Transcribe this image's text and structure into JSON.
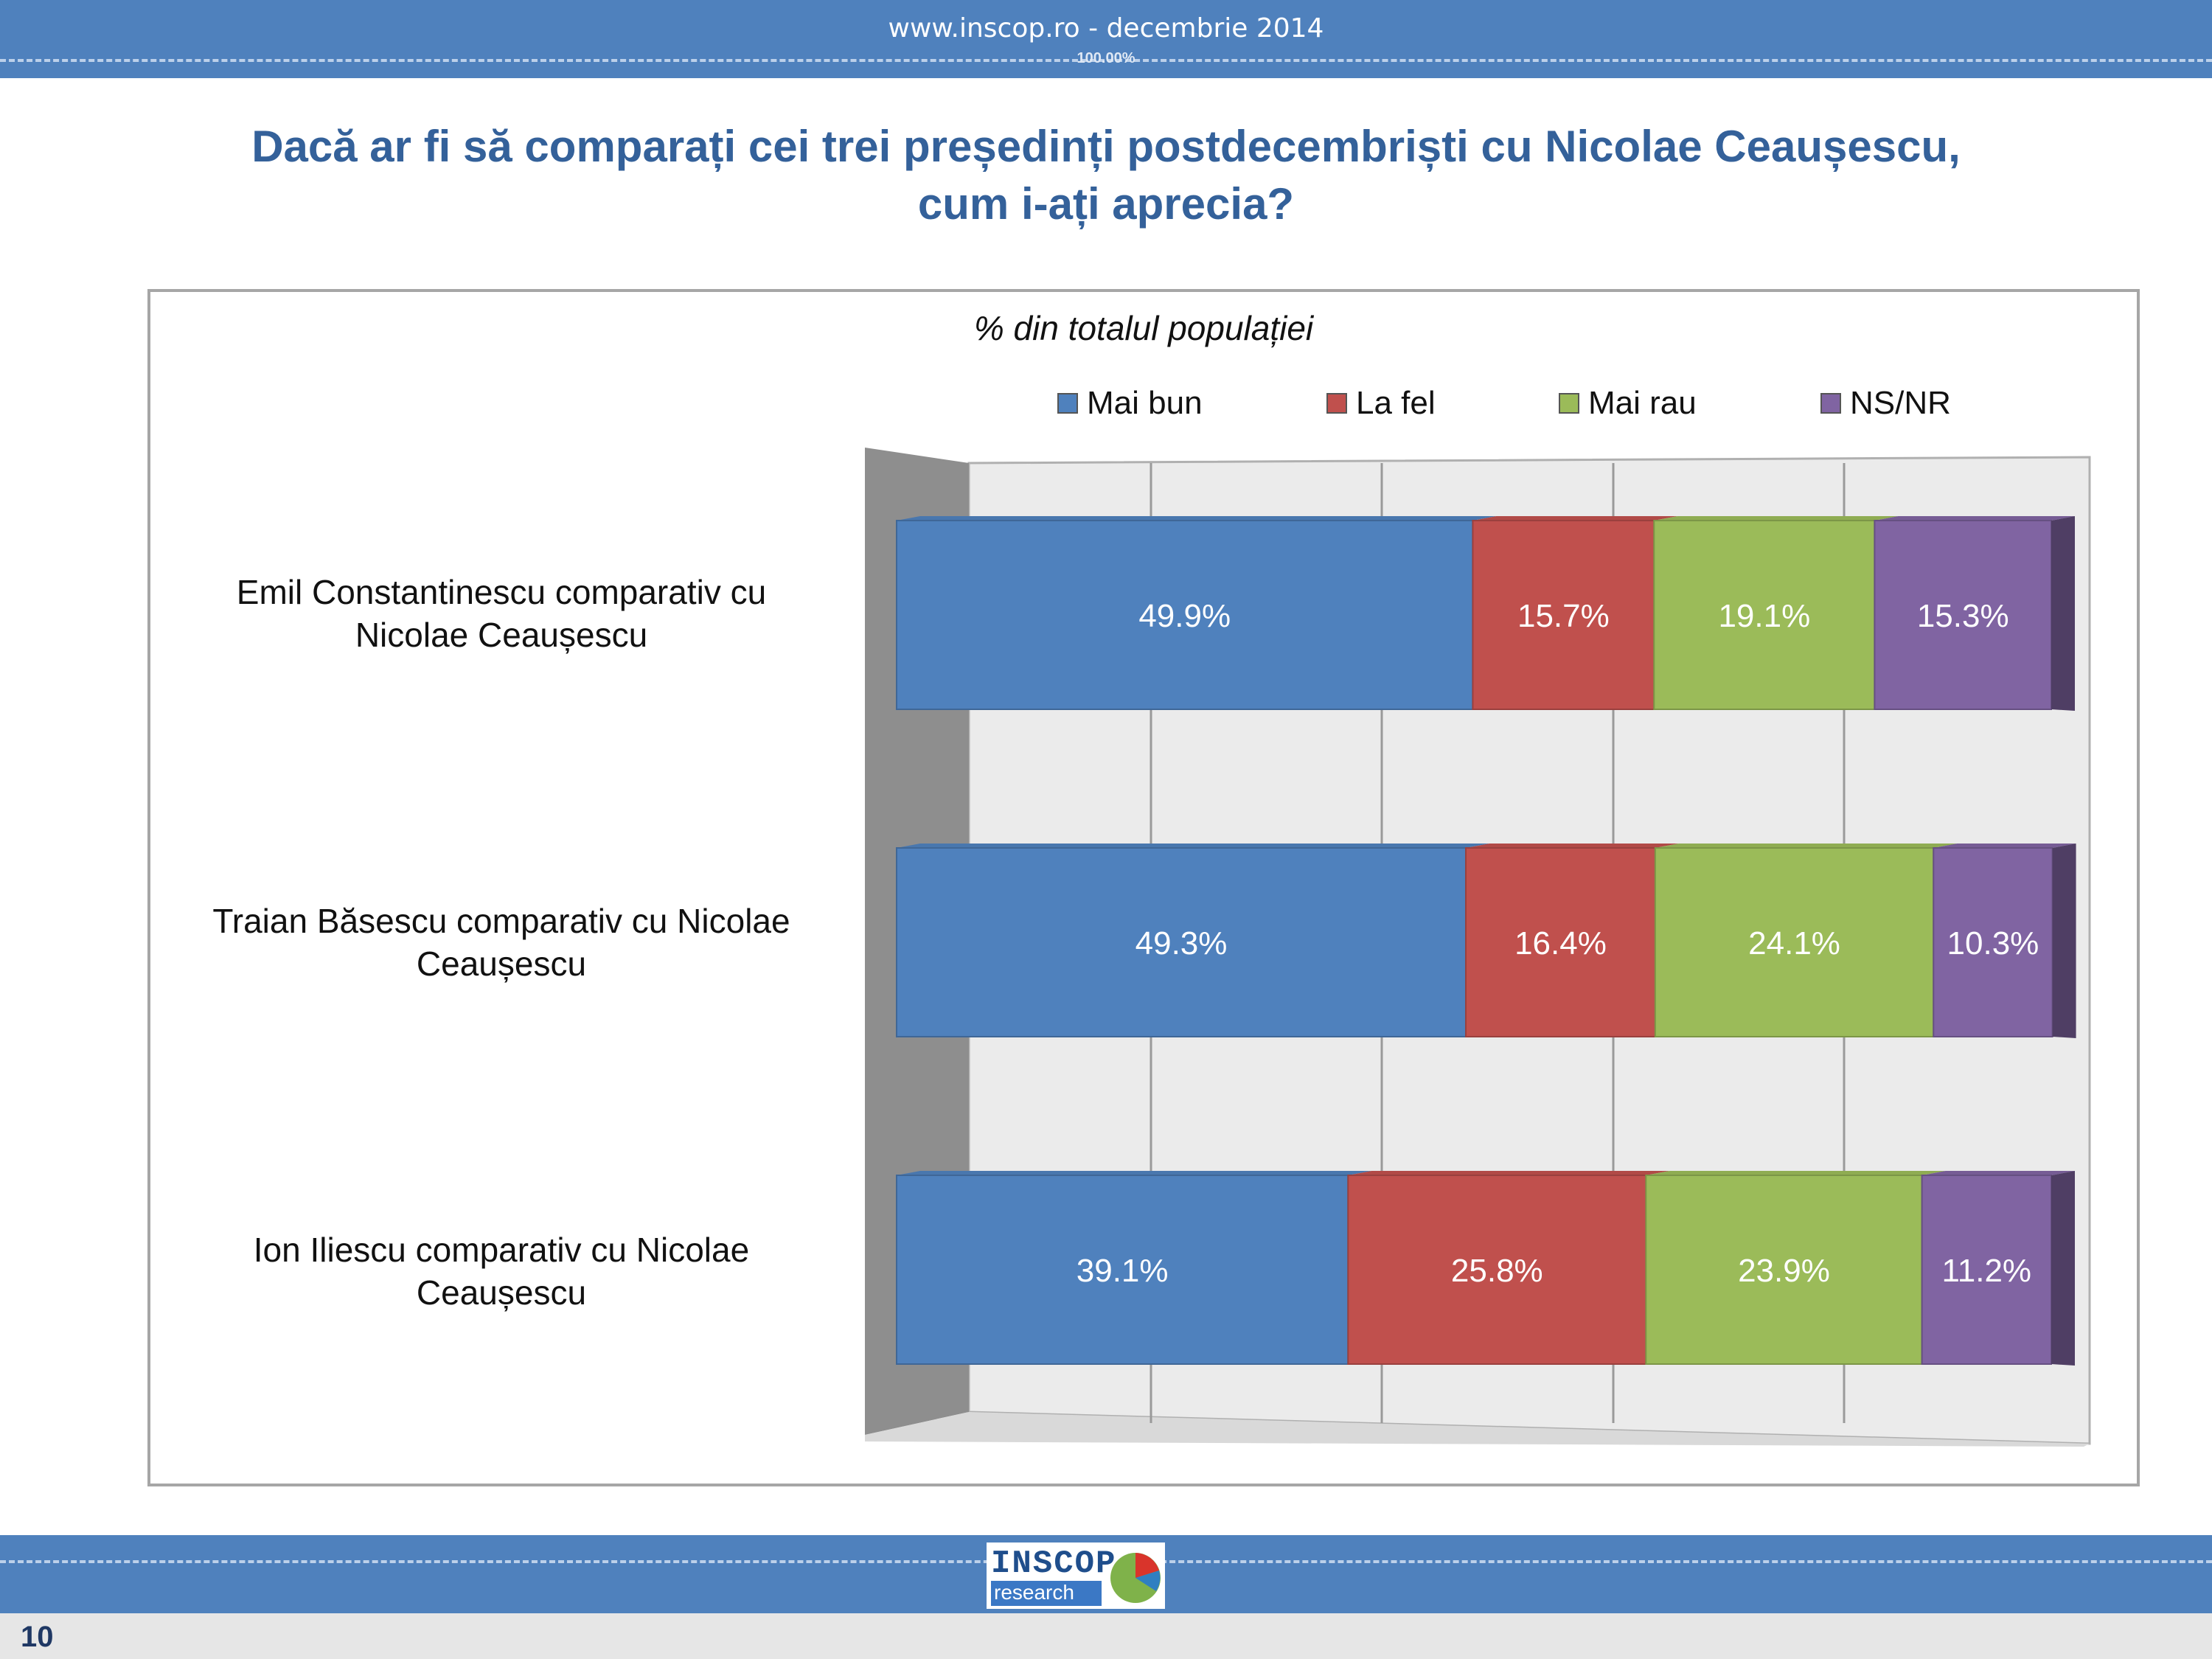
{
  "header": {
    "site": "www.inscop.ro   -   decembrie 2014",
    "zoom": "100.00%"
  },
  "title_line1": "Dacă ar fi să comparați cei trei președinți postdecembriști cu Nicolae Ceaușescu,",
  "title_line2": "cum i-ați aprecia?",
  "chart_data": {
    "type": "bar",
    "orientation": "horizontal",
    "stacked": true,
    "percent_stacked": true,
    "three_d": true,
    "subtitle": "% din totalul populației",
    "categories": [
      "Emil Constantinescu comparativ cu Nicolae Ceaușescu",
      "Traian Băsescu comparativ cu Nicolae Ceaușescu",
      "Ion Iliescu comparativ cu Nicolae Ceaușescu"
    ],
    "category_lines": [
      [
        "Emil Constantinescu comparativ cu",
        "Nicolae Ceaușescu"
      ],
      [
        "Traian Băsescu comparativ cu Nicolae",
        "Ceaușescu"
      ],
      [
        "Ion Iliescu comparativ cu Nicolae",
        "Ceaușescu"
      ]
    ],
    "series": [
      {
        "name": "Mai bun",
        "color": "#4f81bd",
        "values": [
          49.9,
          49.3,
          39.1
        ],
        "labels": [
          "49.9%",
          "49.3%",
          "39.1%"
        ]
      },
      {
        "name": "La fel",
        "color": "#c0504d",
        "values": [
          15.7,
          16.4,
          25.8
        ],
        "labels": [
          "15.7%",
          "16.4%",
          "25.8%"
        ]
      },
      {
        "name": "Mai rau",
        "color": "#9bbb59",
        "values": [
          19.1,
          24.1,
          23.9
        ],
        "labels": [
          "19.1%",
          "24.1%",
          "23.9%"
        ]
      },
      {
        "name": "NS/NR",
        "color": "#8064a2",
        "values": [
          15.3,
          10.3,
          11.2
        ],
        "labels": [
          "15.3%",
          "10.3%",
          "11.2%"
        ]
      }
    ],
    "legend_position": "top",
    "grid": true,
    "xlim": [
      0,
      100
    ]
  },
  "logo": {
    "text1": "INSCOP",
    "text2": "research"
  },
  "footer": {
    "page_number": "10"
  }
}
